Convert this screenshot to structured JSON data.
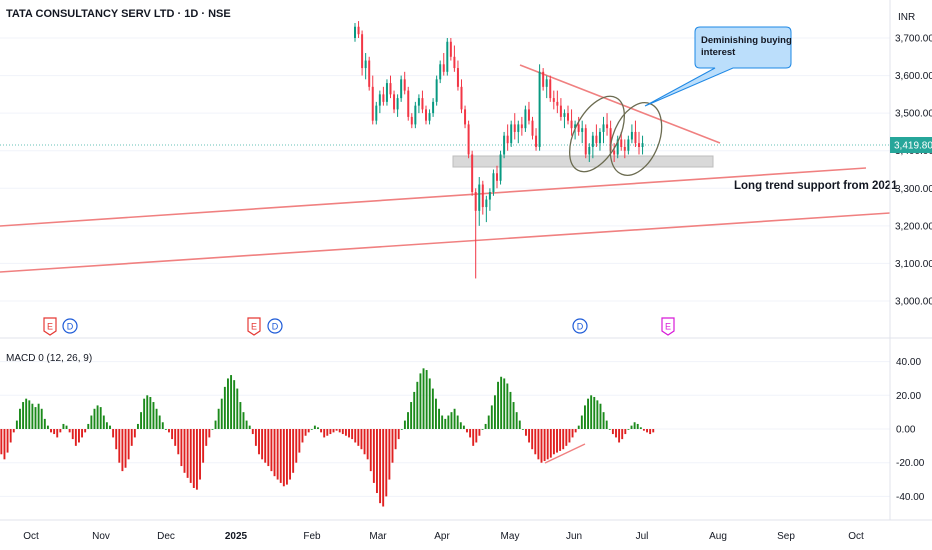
{
  "header": {
    "title": "TATA CONSULTANCY SERV LTD · 1D · NSE",
    "currency": "INR"
  },
  "price_axis": {
    "ticks": [
      "3,700.00",
      "3,600.00",
      "3,500.00",
      "3,400.00",
      "3,300.00",
      "3,200.00",
      "3,100.00",
      "3,000.00"
    ],
    "last_price": "3,419.80"
  },
  "macd": {
    "label": "MACD 0 (12, 26, 9)",
    "ticks": [
      "40.00",
      "20.00",
      "0.00",
      "-20.00",
      "-40.00"
    ]
  },
  "x_axis": {
    "ticks": [
      "Oct",
      "Nov",
      "Dec",
      "2025",
      "Feb",
      "Mar",
      "Apr",
      "May",
      "Jun",
      "Jul",
      "Aug",
      "Sep",
      "Oct"
    ]
  },
  "annotations": {
    "callout": "Deminishing buying interest",
    "trend_label": "Long trend support from 2021"
  },
  "events": [
    {
      "type": "E",
      "x_label": "Oct"
    },
    {
      "type": "D",
      "x_label": "Oct"
    },
    {
      "type": "E",
      "x_label": "2025"
    },
    {
      "type": "D",
      "x_label": "2025"
    },
    {
      "type": "D",
      "x_label": "Jun"
    },
    {
      "type": "E",
      "x_label": "Jul"
    }
  ],
  "colors": {
    "up": "#089981",
    "down": "#f23645",
    "macd_pos": "#1b8a1b",
    "macd_neg": "#e02020",
    "trend": "#f08080",
    "callout_fill": "#bbdefb",
    "callout_stroke": "#1e88e5",
    "price_line": "#26a69a"
  },
  "chart_data": [
    {
      "type": "candlestick",
      "title": "TATA CONSULTANCY SERV LTD · 1D · NSE",
      "ylim": [
        2950,
        3760
      ],
      "last_price": 3419.8,
      "note": "visible daily candles from late Feb to early Jul (approximate OHLC)",
      "candles": [
        [
          3700,
          3740,
          3690,
          3730
        ],
        [
          3730,
          3745,
          3700,
          3710
        ],
        [
          3710,
          3720,
          3600,
          3620
        ],
        [
          3620,
          3660,
          3590,
          3640
        ],
        [
          3640,
          3650,
          3560,
          3570
        ],
        [
          3570,
          3600,
          3470,
          3480
        ],
        [
          3480,
          3530,
          3470,
          3520
        ],
        [
          3520,
          3560,
          3500,
          3550
        ],
        [
          3550,
          3570,
          3520,
          3530
        ],
        [
          3530,
          3590,
          3520,
          3580
        ],
        [
          3580,
          3600,
          3540,
          3550
        ],
        [
          3550,
          3560,
          3500,
          3510
        ],
        [
          3510,
          3550,
          3490,
          3540
        ],
        [
          3540,
          3600,
          3530,
          3590
        ],
        [
          3590,
          3610,
          3550,
          3560
        ],
        [
          3560,
          3570,
          3480,
          3490
        ],
        [
          3490,
          3500,
          3460,
          3470
        ],
        [
          3470,
          3530,
          3460,
          3520
        ],
        [
          3520,
          3550,
          3500,
          3540
        ],
        [
          3540,
          3560,
          3500,
          3510
        ],
        [
          3510,
          3520,
          3470,
          3480
        ],
        [
          3480,
          3510,
          3470,
          3500
        ],
        [
          3500,
          3540,
          3490,
          3530
        ],
        [
          3530,
          3600,
          3520,
          3590
        ],
        [
          3590,
          3640,
          3580,
          3630
        ],
        [
          3630,
          3660,
          3600,
          3610
        ],
        [
          3610,
          3700,
          3600,
          3690
        ],
        [
          3690,
          3700,
          3640,
          3650
        ],
        [
          3650,
          3680,
          3610,
          3620
        ],
        [
          3620,
          3640,
          3560,
          3570
        ],
        [
          3570,
          3590,
          3500,
          3510
        ],
        [
          3510,
          3520,
          3460,
          3470
        ],
        [
          3470,
          3480,
          3380,
          3390
        ],
        [
          3390,
          3400,
          3280,
          3290
        ],
        [
          3290,
          3300,
          3060,
          3240
        ],
        [
          3240,
          3330,
          3200,
          3310
        ],
        [
          3310,
          3320,
          3230,
          3250
        ],
        [
          3250,
          3280,
          3210,
          3270
        ],
        [
          3270,
          3300,
          3240,
          3290
        ],
        [
          3290,
          3350,
          3280,
          3340
        ],
        [
          3340,
          3360,
          3300,
          3320
        ],
        [
          3320,
          3400,
          3310,
          3390
        ],
        [
          3390,
          3450,
          3380,
          3440
        ],
        [
          3440,
          3470,
          3400,
          3420
        ],
        [
          3420,
          3480,
          3410,
          3470
        ],
        [
          3470,
          3500,
          3430,
          3450
        ],
        [
          3450,
          3480,
          3420,
          3470
        ],
        [
          3470,
          3490,
          3440,
          3460
        ],
        [
          3460,
          3520,
          3450,
          3510
        ],
        [
          3510,
          3530,
          3470,
          3480
        ],
        [
          3480,
          3490,
          3430,
          3440
        ],
        [
          3440,
          3460,
          3400,
          3410
        ],
        [
          3410,
          3630,
          3400,
          3610
        ],
        [
          3610,
          3620,
          3560,
          3570
        ],
        [
          3570,
          3600,
          3540,
          3590
        ],
        [
          3590,
          3600,
          3530,
          3540
        ],
        [
          3540,
          3560,
          3510,
          3530
        ],
        [
          3530,
          3560,
          3500,
          3520
        ],
        [
          3520,
          3540,
          3480,
          3490
        ],
        [
          3490,
          3510,
          3460,
          3500
        ],
        [
          3500,
          3520,
          3470,
          3480
        ],
        [
          3480,
          3510,
          3440,
          3460
        ],
        [
          3460,
          3480,
          3430,
          3470
        ],
        [
          3470,
          3490,
          3440,
          3450
        ],
        [
          3450,
          3480,
          3420,
          3460
        ],
        [
          3460,
          3470,
          3380,
          3390
        ],
        [
          3390,
          3420,
          3370,
          3410
        ],
        [
          3410,
          3450,
          3380,
          3440
        ],
        [
          3440,
          3470,
          3410,
          3420
        ],
        [
          3420,
          3460,
          3400,
          3450
        ],
        [
          3450,
          3490,
          3420,
          3470
        ],
        [
          3470,
          3500,
          3440,
          3460
        ],
        [
          3460,
          3480,
          3390,
          3400
        ],
        [
          3400,
          3420,
          3370,
          3390
        ],
        [
          3390,
          3440,
          3380,
          3430
        ],
        [
          3430,
          3450,
          3400,
          3410
        ],
        [
          3410,
          3430,
          3380,
          3400
        ],
        [
          3400,
          3440,
          3390,
          3430
        ],
        [
          3430,
          3470,
          3420,
          3450
        ],
        [
          3450,
          3480,
          3410,
          3420
        ],
        [
          3420,
          3450,
          3390,
          3410
        ],
        [
          3410,
          3440,
          3390,
          3420
        ]
      ]
    },
    {
      "type": "bar",
      "title": "MACD 0 (12, 26, 9)",
      "ylim": [
        -50,
        48
      ],
      "values": [
        -15,
        -18,
        -14,
        -8,
        -2,
        5,
        12,
        16,
        18,
        17,
        15,
        13,
        15,
        12,
        6,
        2,
        -2,
        -3,
        -5,
        -2,
        3,
        2,
        -2,
        -6,
        -10,
        -8,
        -5,
        -2,
        3,
        8,
        12,
        14,
        13,
        8,
        4,
        2,
        -5,
        -12,
        -20,
        -25,
        -23,
        -18,
        -10,
        -5,
        3,
        10,
        18,
        20,
        19,
        16,
        12,
        8,
        4,
        0,
        -2,
        -6,
        -10,
        -15,
        -22,
        -26,
        -29,
        -32,
        -35,
        -36,
        -30,
        -20,
        -10,
        -5,
        0,
        5,
        12,
        18,
        25,
        30,
        32,
        29,
        24,
        16,
        10,
        5,
        2,
        -3,
        -10,
        -15,
        -18,
        -20,
        -22,
        -25,
        -28,
        -30,
        -32,
        -34,
        -33,
        -30,
        -26,
        -20,
        -14,
        -8,
        -4,
        -2,
        0,
        2,
        1,
        -2,
        -5,
        -4,
        -3,
        -2,
        -1,
        -2,
        -3,
        -4,
        -5,
        -6,
        -8,
        -10,
        -12,
        -15,
        -18,
        -25,
        -32,
        -38,
        -44,
        -46,
        -40,
        -30,
        -20,
        -12,
        -6,
        0,
        5,
        10,
        16,
        22,
        28,
        33,
        36,
        35,
        30,
        24,
        18,
        12,
        8,
        6,
        8,
        10,
        12,
        8,
        4,
        2,
        -2,
        -5,
        -10,
        -8,
        -4,
        0,
        3,
        8,
        14,
        20,
        28,
        31,
        30,
        27,
        22,
        16,
        10,
        5,
        0,
        -4,
        -8,
        -12,
        -15,
        -18,
        -20,
        -19,
        -18,
        -17,
        -15,
        -14,
        -13,
        -12,
        -10,
        -8,
        -5,
        -2,
        2,
        8,
        14,
        18,
        20,
        19,
        17,
        15,
        10,
        5,
        0,
        -3,
        -5,
        -8,
        -6,
        -3,
        0,
        2,
        4,
        3,
        1,
        -1,
        -2,
        -3,
        -2
      ]
    }
  ]
}
